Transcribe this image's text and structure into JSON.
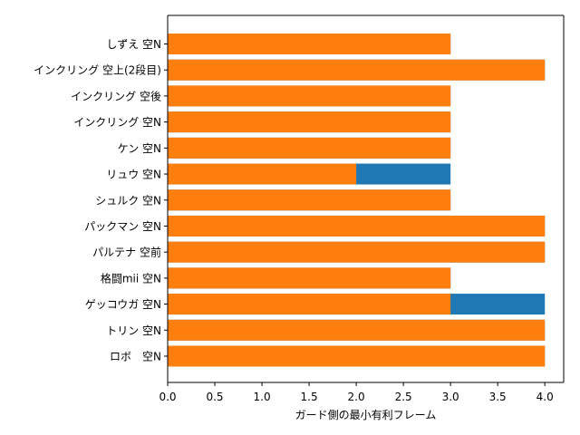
{
  "chart_data": {
    "type": "bar",
    "orientation": "horizontal",
    "stacked_overlay": true,
    "title": "",
    "xlabel": "ガード側の最小有利フレーム",
    "ylabel": "",
    "xlim": [
      0,
      4.2
    ],
    "xticks": [
      "0.0",
      "0.5",
      "1.0",
      "1.5",
      "2.0",
      "2.5",
      "3.0",
      "3.5",
      "4.0"
    ],
    "categories": [
      "しずえ 空N",
      "インクリング 空上(2段目)",
      "インクリング 空後",
      "インクリング 空N",
      "ケン 空N",
      "リュウ 空N",
      "シュルク 空N",
      "パックマン 空N",
      "パルテナ 空前",
      "格闘mii 空N",
      "ゲッコウガ 空N",
      "トリン 空N",
      "ロボ　空N"
    ],
    "series": [
      {
        "name": "series-blue",
        "color": "#1f77b4",
        "values": [
          3,
          4,
          3,
          3,
          3,
          3,
          3,
          4,
          4,
          3,
          4,
          4,
          4
        ]
      },
      {
        "name": "series-orange",
        "color": "#ff7f0e",
        "values": [
          3,
          4,
          3,
          3,
          3,
          2,
          3,
          4,
          4,
          3,
          3,
          4,
          4
        ]
      }
    ],
    "grid": false,
    "legend": "none"
  }
}
